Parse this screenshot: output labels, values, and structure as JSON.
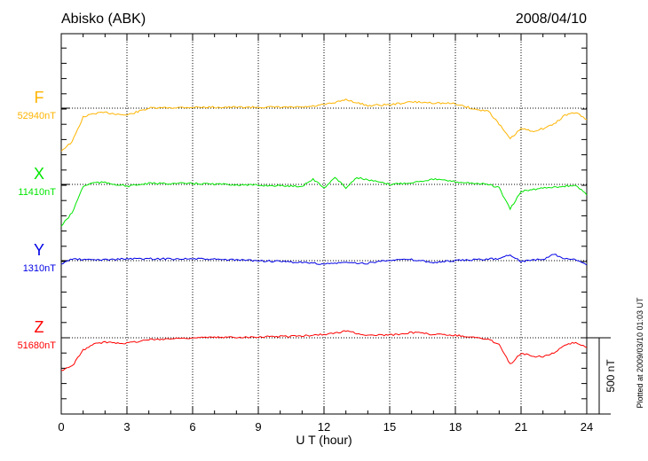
{
  "chart_data": {
    "type": "line",
    "title": "Abisko (ABK)",
    "date": "2008/04/10",
    "xlabel": "U T (hour)",
    "xlim": [
      0,
      24
    ],
    "xticks": [
      "0",
      "3",
      "6",
      "9",
      "12",
      "15",
      "18",
      "21",
      "24"
    ],
    "scale_label": "500 nT",
    "footer": "Plotted at 2009/03/10 01:03 UT",
    "grid": "dotted",
    "x": [
      0,
      0.5,
      1,
      1.5,
      2,
      3,
      4,
      6,
      9,
      11,
      11.5,
      12,
      12.5,
      13,
      13.5,
      14,
      15,
      16,
      17,
      18,
      19,
      19.5,
      20,
      20.5,
      21,
      21.5,
      22,
      22.5,
      23,
      23.5,
      24
    ],
    "series": [
      {
        "name": "F",
        "baseline": "52940nT",
        "color": "#ffb400",
        "values": [
          -279,
          -221,
          -58,
          -35,
          -29,
          -46,
          0,
          6,
          6,
          6,
          12,
          23,
          35,
          58,
          35,
          17,
          23,
          41,
          35,
          29,
          -12,
          -17,
          -105,
          -203,
          -134,
          -151,
          -134,
          -105,
          -46,
          -29,
          -75
        ]
      },
      {
        "name": "X",
        "baseline": "11410nT",
        "color": "#00e600",
        "values": [
          -273,
          -186,
          -12,
          12,
          12,
          -12,
          6,
          6,
          -6,
          -12,
          35,
          -23,
          46,
          -23,
          46,
          29,
          0,
          12,
          35,
          17,
          6,
          0,
          -23,
          -163,
          -46,
          -35,
          -23,
          -17,
          -12,
          -6,
          -70
        ]
      },
      {
        "name": "Y",
        "baseline": "1310nT",
        "color": "#0000e6",
        "values": [
          -23,
          12,
          6,
          6,
          6,
          12,
          12,
          12,
          0,
          -12,
          -17,
          -23,
          -17,
          -12,
          -17,
          -17,
          6,
          6,
          -12,
          0,
          6,
          12,
          12,
          41,
          -6,
          6,
          6,
          41,
          12,
          6,
          -29
        ]
      },
      {
        "name": "Z",
        "baseline": "51680nT",
        "color": "#ff0000",
        "values": [
          -215,
          -186,
          -81,
          -41,
          -29,
          -35,
          -12,
          0,
          6,
          12,
          17,
          23,
          29,
          46,
          29,
          17,
          17,
          35,
          23,
          17,
          0,
          -12,
          -41,
          -174,
          -99,
          -122,
          -122,
          -99,
          -52,
          -29,
          -64
        ]
      }
    ]
  }
}
